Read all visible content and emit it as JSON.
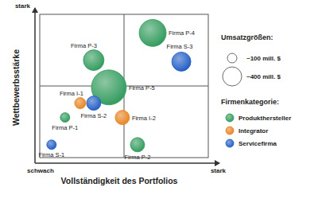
{
  "chart_data": {
    "type": "bubble",
    "x_label": "Vollständigkeit des Portfolios",
    "y_label": "Wettbewerbsstärke",
    "xlim": [
      0,
      10
    ],
    "ylim": [
      0,
      10
    ],
    "xticks": [
      {
        "value": 0,
        "label": "schwach"
      },
      {
        "value": 10,
        "label": "stark"
      }
    ],
    "yticks": [
      {
        "value": 10,
        "label": "stark"
      }
    ],
    "tick_labels": true,
    "legend": "right",
    "size_legend_title": "Umsatzgrößen:",
    "size_legend": [
      {
        "value": 100,
        "label": "~100 mill. $"
      },
      {
        "value": 400,
        "label": "~400 mill. $"
      }
    ],
    "legend_title": "Firmenkategorie:",
    "series": [
      {
        "name": "Produkthersteller",
        "color": "#2f9a5a",
        "labels": [
          "Firma P-4",
          "Firma P-3",
          "Firma P-5",
          "Firma P-1",
          "Firma P-2"
        ],
        "x": [
          6.7,
          3.2,
          4.1,
          1.5,
          5.8
        ],
        "values": [
          8.7,
          6.8,
          4.9,
          2.8,
          0.9
        ],
        "sizes": [
          800,
          470,
          1340,
          100,
          225
        ]
      },
      {
        "name": "Integrator",
        "color": "#e8821e",
        "labels": [
          "Firma I-1",
          "Firma I-2"
        ],
        "x": [
          2.4,
          4.9
        ],
        "values": [
          3.8,
          2.8
        ],
        "sizes": [
          136,
          225
        ]
      },
      {
        "name": "Servicefirma",
        "color": "#1f5cc4",
        "labels": [
          "Firma S-3",
          "Firma S-2",
          "Firma S-1"
        ],
        "x": [
          8.4,
          3.2,
          0.7
        ],
        "values": [
          6.7,
          3.8,
          0.9
        ],
        "sizes": [
          400,
          225,
          100
        ]
      }
    ]
  }
}
